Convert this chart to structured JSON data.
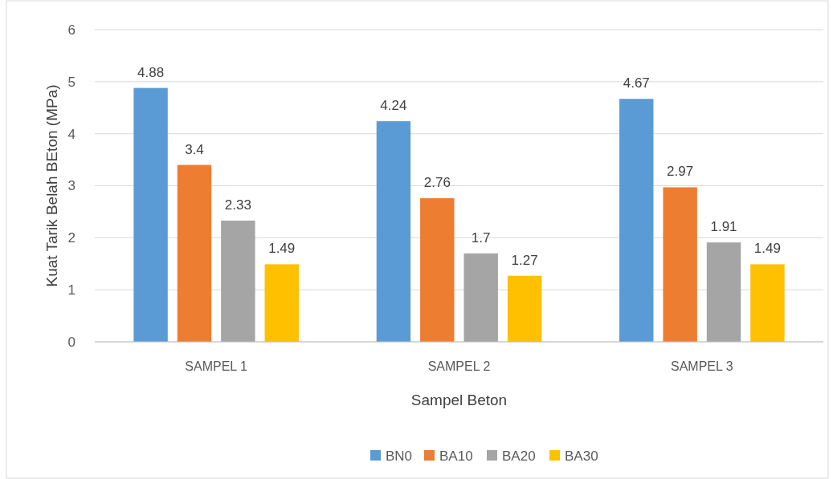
{
  "chart_data": {
    "type": "bar",
    "xlabel": "Sampel Beton",
    "ylabel": "Kuat Tarik Belah BEton (MPa)",
    "categories": [
      "SAMPEL 1",
      "SAMPEL 2",
      "SAMPEL 3"
    ],
    "series": [
      {
        "name": "BN0",
        "color": "#5b9bd5",
        "values": [
          4.88,
          4.24,
          4.67
        ]
      },
      {
        "name": "BA10",
        "color": "#ed7d31",
        "values": [
          3.4,
          2.76,
          2.97
        ]
      },
      {
        "name": "BA20",
        "color": "#a5a5a5",
        "values": [
          2.33,
          1.7,
          1.91
        ]
      },
      {
        "name": "BA30",
        "color": "#ffc000",
        "values": [
          1.49,
          1.27,
          1.49
        ]
      }
    ],
    "ylim": [
      0,
      6
    ],
    "yticks": [
      0,
      1,
      2,
      3,
      4,
      5,
      6
    ],
    "grid": "y",
    "legend": "bottom",
    "data_labels": true
  }
}
